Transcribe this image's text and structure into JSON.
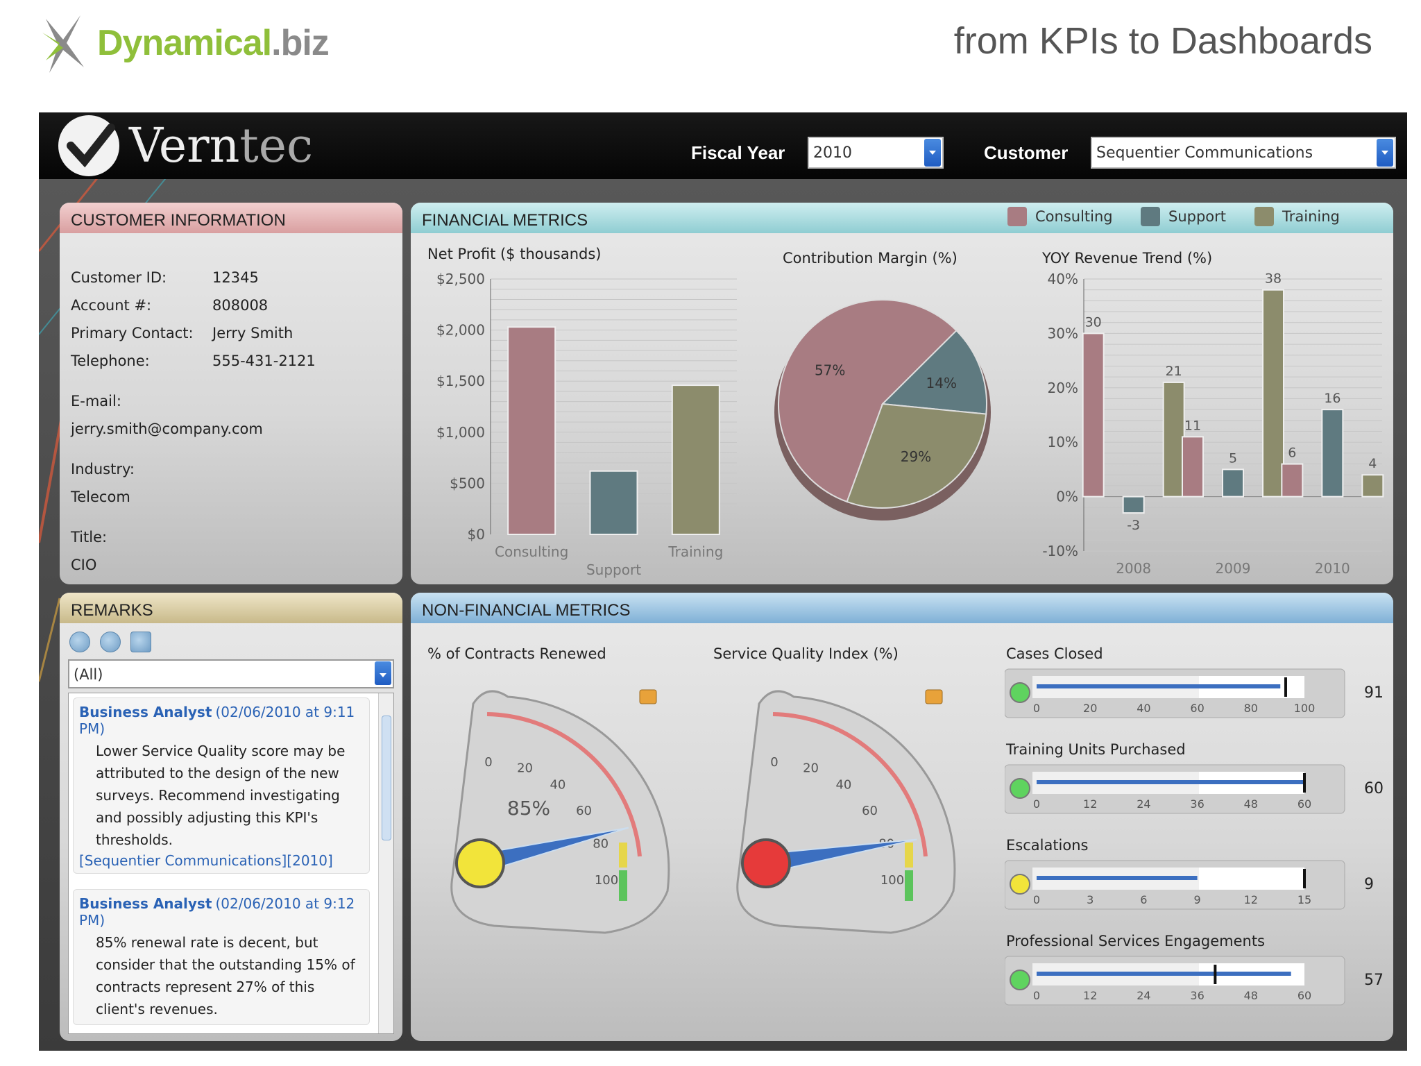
{
  "brand": {
    "name_a": "Dynamical",
    "name_b": ".biz",
    "tagline": "from KPIs to Dashboards"
  },
  "header": {
    "logo_text_a": "Vern",
    "logo_text_b": "tec",
    "fiscal_year_label": "Fiscal Year",
    "fiscal_year_value": "2010",
    "customer_label": "Customer",
    "customer_value": "Sequentier Communications"
  },
  "customer_info": {
    "title": "CUSTOMER INFORMATION",
    "id_label": "Customer ID:",
    "id_value": "12345",
    "account_label": "Account #:",
    "account_value": "808008",
    "contact_label": "Primary Contact:",
    "contact_value": "Jerry Smith",
    "phone_label": "Telephone:",
    "phone_value": "555-431-2121",
    "email_label": "E-mail:",
    "email_value": "jerry.smith@company.com",
    "industry_label": "Industry:",
    "industry_value": "Telecom",
    "title_label": "Title:",
    "title_value": "CIO"
  },
  "financial": {
    "title": "FINANCIAL METRICS",
    "legend": [
      "Consulting",
      "Support",
      "Training"
    ],
    "colors": {
      "consulting": "#a87c82",
      "support": "#5f7a80",
      "training": "#8c8c6c"
    }
  },
  "remarks": {
    "title": "REMARKS",
    "filter": "(All)",
    "items": [
      {
        "author": "Business Analyst",
        "date": "(02/06/2010 at 9:11 PM)",
        "body": "Lower Service Quality score may be attributed to the design of the new surveys. Recommend investigating and possibly adjusting this KPI's thresholds.",
        "tag": "[Sequentier Communications][2010]"
      },
      {
        "author": "Business Analyst",
        "date": "(02/06/2010 at 9:12 PM)",
        "body": "85% renewal rate is decent, but consider that the outstanding 15% of contracts represent 27% of this client's revenues."
      }
    ]
  },
  "non_financial": {
    "title": "NON-FINANCIAL METRICS",
    "gauges": [
      {
        "title": "% of Contracts Renewed",
        "value": 85,
        "value_label": "85%",
        "indicator": "#f2e43a"
      },
      {
        "title": "Service Quality Index (%)",
        "value": 90,
        "value_label": "",
        "indicator": "#e63a3a"
      }
    ],
    "bullets": [
      {
        "title": "Cases Closed",
        "value": 91,
        "display": "91",
        "max": 100,
        "ticks": [
          "0",
          "20",
          "40",
          "60",
          "80",
          "100"
        ],
        "target": 93,
        "indicator": "#5fd35f"
      },
      {
        "title": "Training Units Purchased",
        "value": 60,
        "display": "60",
        "max": 60,
        "ticks": [
          "0",
          "12",
          "24",
          "36",
          "48",
          "60"
        ],
        "target": 60,
        "indicator": "#5fd35f"
      },
      {
        "title": "Escalations",
        "value": 9,
        "display": "9",
        "max": 15,
        "ticks": [
          "0",
          "3",
          "6",
          "9",
          "12",
          "15"
        ],
        "target": 15,
        "indicator": "#f2e43a"
      },
      {
        "title": "Professional Services Engagements",
        "value": 57,
        "display": "57",
        "max": 60,
        "ticks": [
          "0",
          "12",
          "24",
          "36",
          "48",
          "60"
        ],
        "target": 40,
        "indicator": "#5fd35f"
      }
    ]
  },
  "chart_data": [
    {
      "type": "bar",
      "title": "Net Profit ($ thousands)",
      "categories": [
        "Consulting",
        "Support",
        "Training"
      ],
      "values": [
        2030,
        620,
        1460
      ],
      "ylim": [
        0,
        2500
      ],
      "yticks": [
        "$0",
        "$500",
        "$1,000",
        "$1,500",
        "$2,000",
        "$2,500"
      ],
      "xlabel": "",
      "ylabel": "",
      "grid": true
    },
    {
      "type": "pie",
      "title": "Contribution Margin (%)",
      "categories": [
        "Consulting",
        "Support",
        "Training"
      ],
      "values": [
        57,
        14,
        29
      ],
      "labels": [
        "57%",
        "14%",
        "29%"
      ]
    },
    {
      "type": "bar",
      "title": "YOY Revenue Trend (%)",
      "categories": [
        "2008",
        "2009",
        "2010"
      ],
      "series": [
        {
          "name": "Consulting",
          "values": [
            30,
            11,
            6
          ]
        },
        {
          "name": "Support",
          "values": [
            -3,
            5,
            16
          ]
        },
        {
          "name": "Training",
          "values": [
            21,
            38,
            4
          ]
        }
      ],
      "ylim": [
        -10,
        40
      ],
      "yticks": [
        "-10%",
        "0%",
        "10%",
        "20%",
        "30%",
        "40%"
      ],
      "grid": true
    }
  ]
}
